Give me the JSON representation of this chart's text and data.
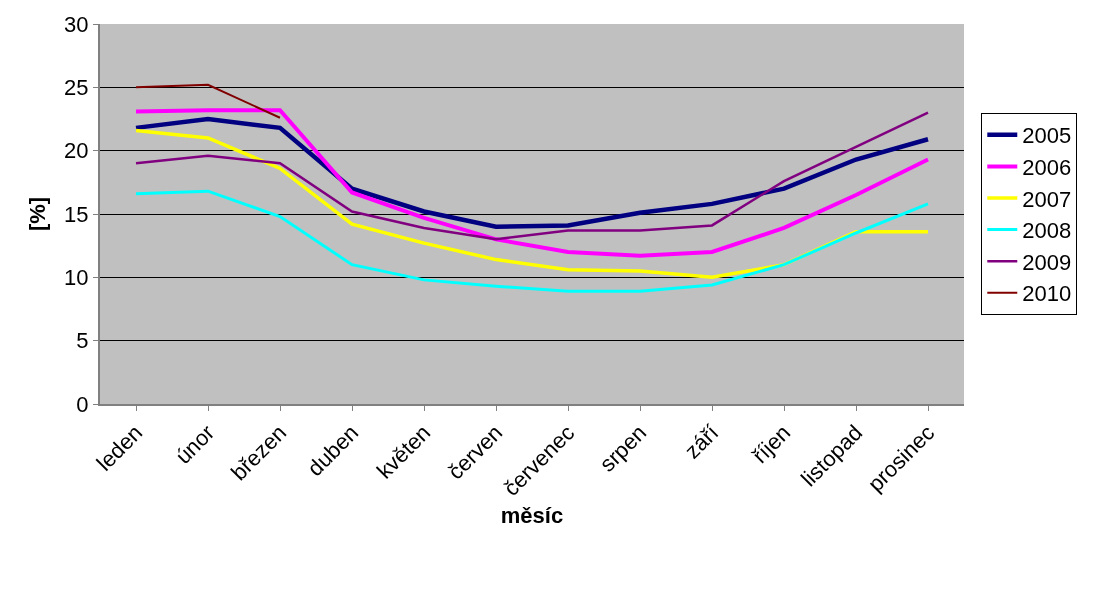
{
  "chart_data": {
    "type": "line",
    "xlabel": "měsíc",
    "ylabel": "[%]",
    "categories": [
      "leden",
      "únor",
      "březen",
      "duben",
      "květen",
      "červen",
      "červenec",
      "srpen",
      "září",
      "říjen",
      "listopad",
      "prosinec"
    ],
    "series": [
      {
        "name": "2005",
        "color": "#000080",
        "values": [
          21.8,
          22.5,
          21.8,
          17.0,
          15.2,
          14.0,
          14.1,
          15.1,
          15.8,
          17.0,
          19.3,
          20.9
        ]
      },
      {
        "name": "2006",
        "color": "#ff00ff",
        "values": [
          23.1,
          23.2,
          23.2,
          16.7,
          14.7,
          13.0,
          12.0,
          11.7,
          12.0,
          13.9,
          16.5,
          19.3
        ]
      },
      {
        "name": "2007",
        "color": "#ffff00",
        "values": [
          21.6,
          21.0,
          18.6,
          14.2,
          12.7,
          11.4,
          10.6,
          10.5,
          10.0,
          11.0,
          13.6,
          13.6
        ]
      },
      {
        "name": "2008",
        "color": "#00ffff",
        "values": [
          16.6,
          16.8,
          14.8,
          11.0,
          9.8,
          9.3,
          8.9,
          8.9,
          9.4,
          11.0,
          13.5,
          15.8
        ]
      },
      {
        "name": "2009",
        "color": "#800080",
        "values": [
          19.0,
          19.6,
          19.0,
          15.2,
          13.9,
          13.0,
          13.7,
          13.7,
          14.1,
          17.6,
          20.3,
          23.0
        ]
      },
      {
        "name": "2010",
        "color": "#800000",
        "values": [
          25.0,
          25.2,
          22.6,
          null,
          null,
          null,
          null,
          null,
          null,
          null,
          null,
          null
        ]
      }
    ],
    "ylim": [
      0,
      30
    ],
    "yticks": [
      0,
      5,
      10,
      15,
      20,
      25,
      30
    ],
    "grid": "y",
    "legend": "right",
    "marker": "none",
    "line_style": "solid"
  }
}
